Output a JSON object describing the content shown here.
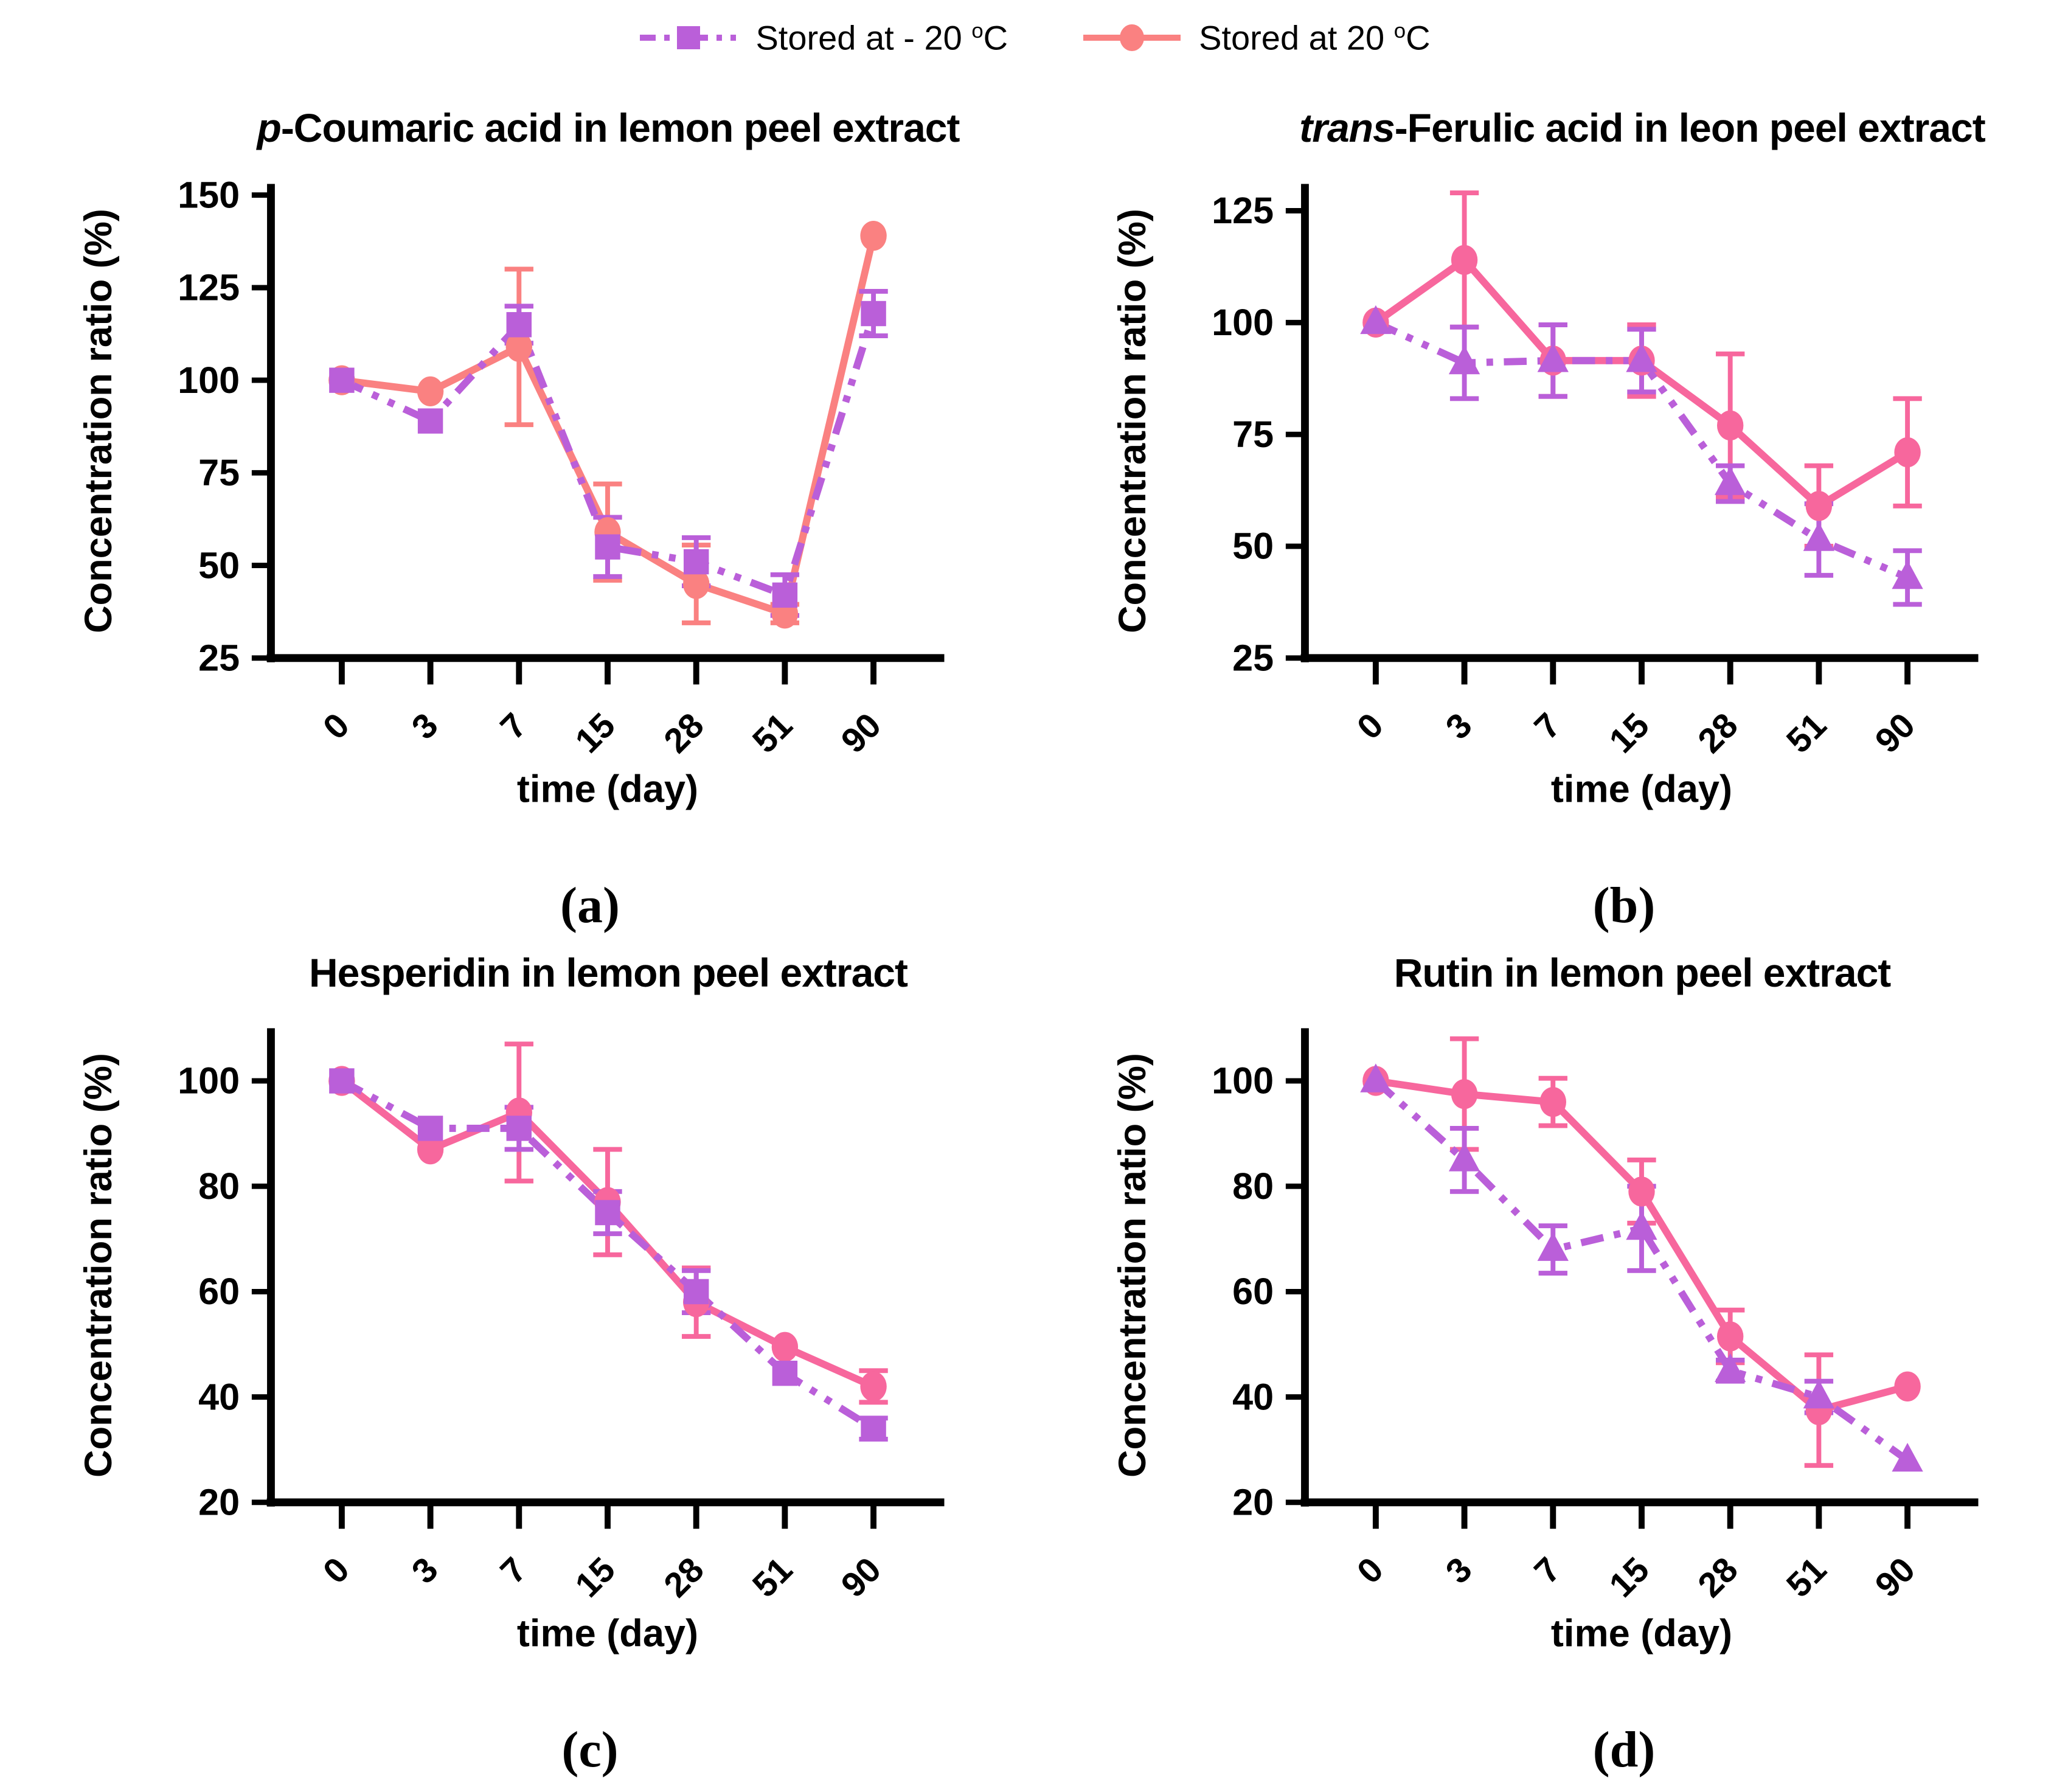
{
  "figure": {
    "background": "#ffffff"
  },
  "legend": {
    "items": [
      {
        "id": "minus20",
        "label_text": "Stored at - 20 ",
        "label_sup": "o",
        "label_tail": "C",
        "color": "#BA5FD9",
        "marker": "square",
        "linestyle": "dashdot"
      },
      {
        "id": "plus20",
        "label_text": "Stored at 20 ",
        "label_sup": "o",
        "label_tail": "C",
        "color": "#FA8181",
        "marker": "circle",
        "linestyle": "solid"
      }
    ]
  },
  "chart_data": [
    {
      "type": "line",
      "panel_label": "(a)",
      "title_parts": [
        {
          "text": "p",
          "italic": true
        },
        {
          "text": "-Coumaric acid in lemon peel extract",
          "italic": false
        }
      ],
      "xlabel": "time (day)",
      "ylabel": "Concentration ratio (%)",
      "categories": [
        "0",
        "3",
        "7",
        "15",
        "28",
        "51",
        "90"
      ],
      "ylim": [
        25,
        153
      ],
      "yticks": [
        25,
        50,
        75,
        100,
        125,
        150
      ],
      "grid": false,
      "legend_position": "top-of-figure",
      "series": [
        {
          "name": "Stored at - 20 °C",
          "marker": "square",
          "linestyle": "dashdot",
          "color": "#BA5FD9",
          "values": [
            100,
            89,
            115,
            55,
            51,
            42,
            118
          ],
          "errors": [
            0,
            0,
            5,
            8,
            6.5,
            5.5,
            6
          ]
        },
        {
          "name": "Stored at 20 °C",
          "marker": "circle",
          "linestyle": "solid",
          "color": "#FA8181",
          "values": [
            100,
            97,
            109,
            59,
            45,
            37,
            139
          ],
          "errors": [
            0,
            0,
            21,
            13,
            10.5,
            2.5,
            0
          ]
        }
      ]
    },
    {
      "type": "line",
      "panel_label": "(b)",
      "title_parts": [
        {
          "text": "trans",
          "italic": true
        },
        {
          "text": "-Ferulic acid in leon peel extract",
          "italic": false
        }
      ],
      "xlabel": "time (day)",
      "ylabel": "Concentration ratio (%)",
      "categories": [
        "0",
        "3",
        "7",
        "15",
        "28",
        "51",
        "90"
      ],
      "ylim": [
        25,
        131
      ],
      "yticks": [
        25,
        50,
        75,
        100,
        125
      ],
      "grid": false,
      "legend_position": "top-of-figure",
      "series": [
        {
          "name": "Stored at - 20 °C",
          "marker": "triangle",
          "linestyle": "dashdot",
          "color": "#BA5FD9",
          "values": [
            100,
            91,
            91.5,
            91.5,
            64,
            51.5,
            43
          ],
          "errors": [
            0,
            8,
            8,
            7,
            4,
            8,
            6
          ]
        },
        {
          "name": "Stored at 20 °C",
          "marker": "circle",
          "linestyle": "solid",
          "color": "#F7679D",
          "values": [
            100,
            114,
            91.5,
            91.5,
            77,
            59,
            71
          ],
          "errors": [
            0,
            15,
            8,
            8,
            16,
            9,
            12
          ]
        }
      ]
    },
    {
      "type": "line",
      "panel_label": "(c)",
      "title_parts": [
        {
          "text": "Hesperidin in lemon peel extract",
          "italic": false
        }
      ],
      "xlabel": "time (day)",
      "ylabel": "Concentration ratio (%)",
      "categories": [
        "0",
        "3",
        "7",
        "15",
        "28",
        "51",
        "90"
      ],
      "ylim": [
        20,
        110
      ],
      "yticks": [
        20,
        40,
        60,
        80,
        100
      ],
      "grid": false,
      "legend_position": "top-of-figure",
      "series": [
        {
          "name": "Stored at - 20 °C",
          "marker": "square",
          "linestyle": "dashdot",
          "color": "#BA5FD9",
          "values": [
            100,
            91,
            91,
            75,
            60,
            44.5,
            34
          ],
          "errors": [
            0,
            0,
            4,
            4,
            4,
            0,
            2
          ]
        },
        {
          "name": "Stored at 20 °C",
          "marker": "circle",
          "linestyle": "solid",
          "color": "#F7679D",
          "values": [
            100,
            87,
            94,
            77,
            58,
            49.5,
            42
          ],
          "errors": [
            0,
            0,
            13,
            10,
            6.5,
            0,
            3
          ]
        }
      ]
    },
    {
      "type": "line",
      "panel_label": "(d)",
      "title_parts": [
        {
          "text": "Rutin in lemon peel extract",
          "italic": false
        }
      ],
      "xlabel": "time (day)",
      "ylabel": "Concentration ratio (%)",
      "categories": [
        "0",
        "3",
        "7",
        "15",
        "28",
        "51",
        "90"
      ],
      "ylim": [
        20,
        110
      ],
      "yticks": [
        20,
        40,
        60,
        80,
        100
      ],
      "grid": false,
      "legend_position": "top-of-figure",
      "series": [
        {
          "name": "Stored at - 20 °C",
          "marker": "triangle",
          "linestyle": "dashdot",
          "color": "#BA5FD9",
          "values": [
            100,
            85,
            68,
            72,
            45,
            40,
            28
          ],
          "errors": [
            0,
            6,
            4.5,
            8,
            2,
            3,
            0
          ]
        },
        {
          "name": "Stored at 20 °C",
          "marker": "circle",
          "linestyle": "solid",
          "color": "#F7679D",
          "values": [
            100,
            97.5,
            96,
            79,
            51.5,
            37.5,
            42
          ],
          "errors": [
            0,
            10.5,
            4.5,
            6,
            5,
            10.5,
            0
          ]
        }
      ]
    }
  ]
}
